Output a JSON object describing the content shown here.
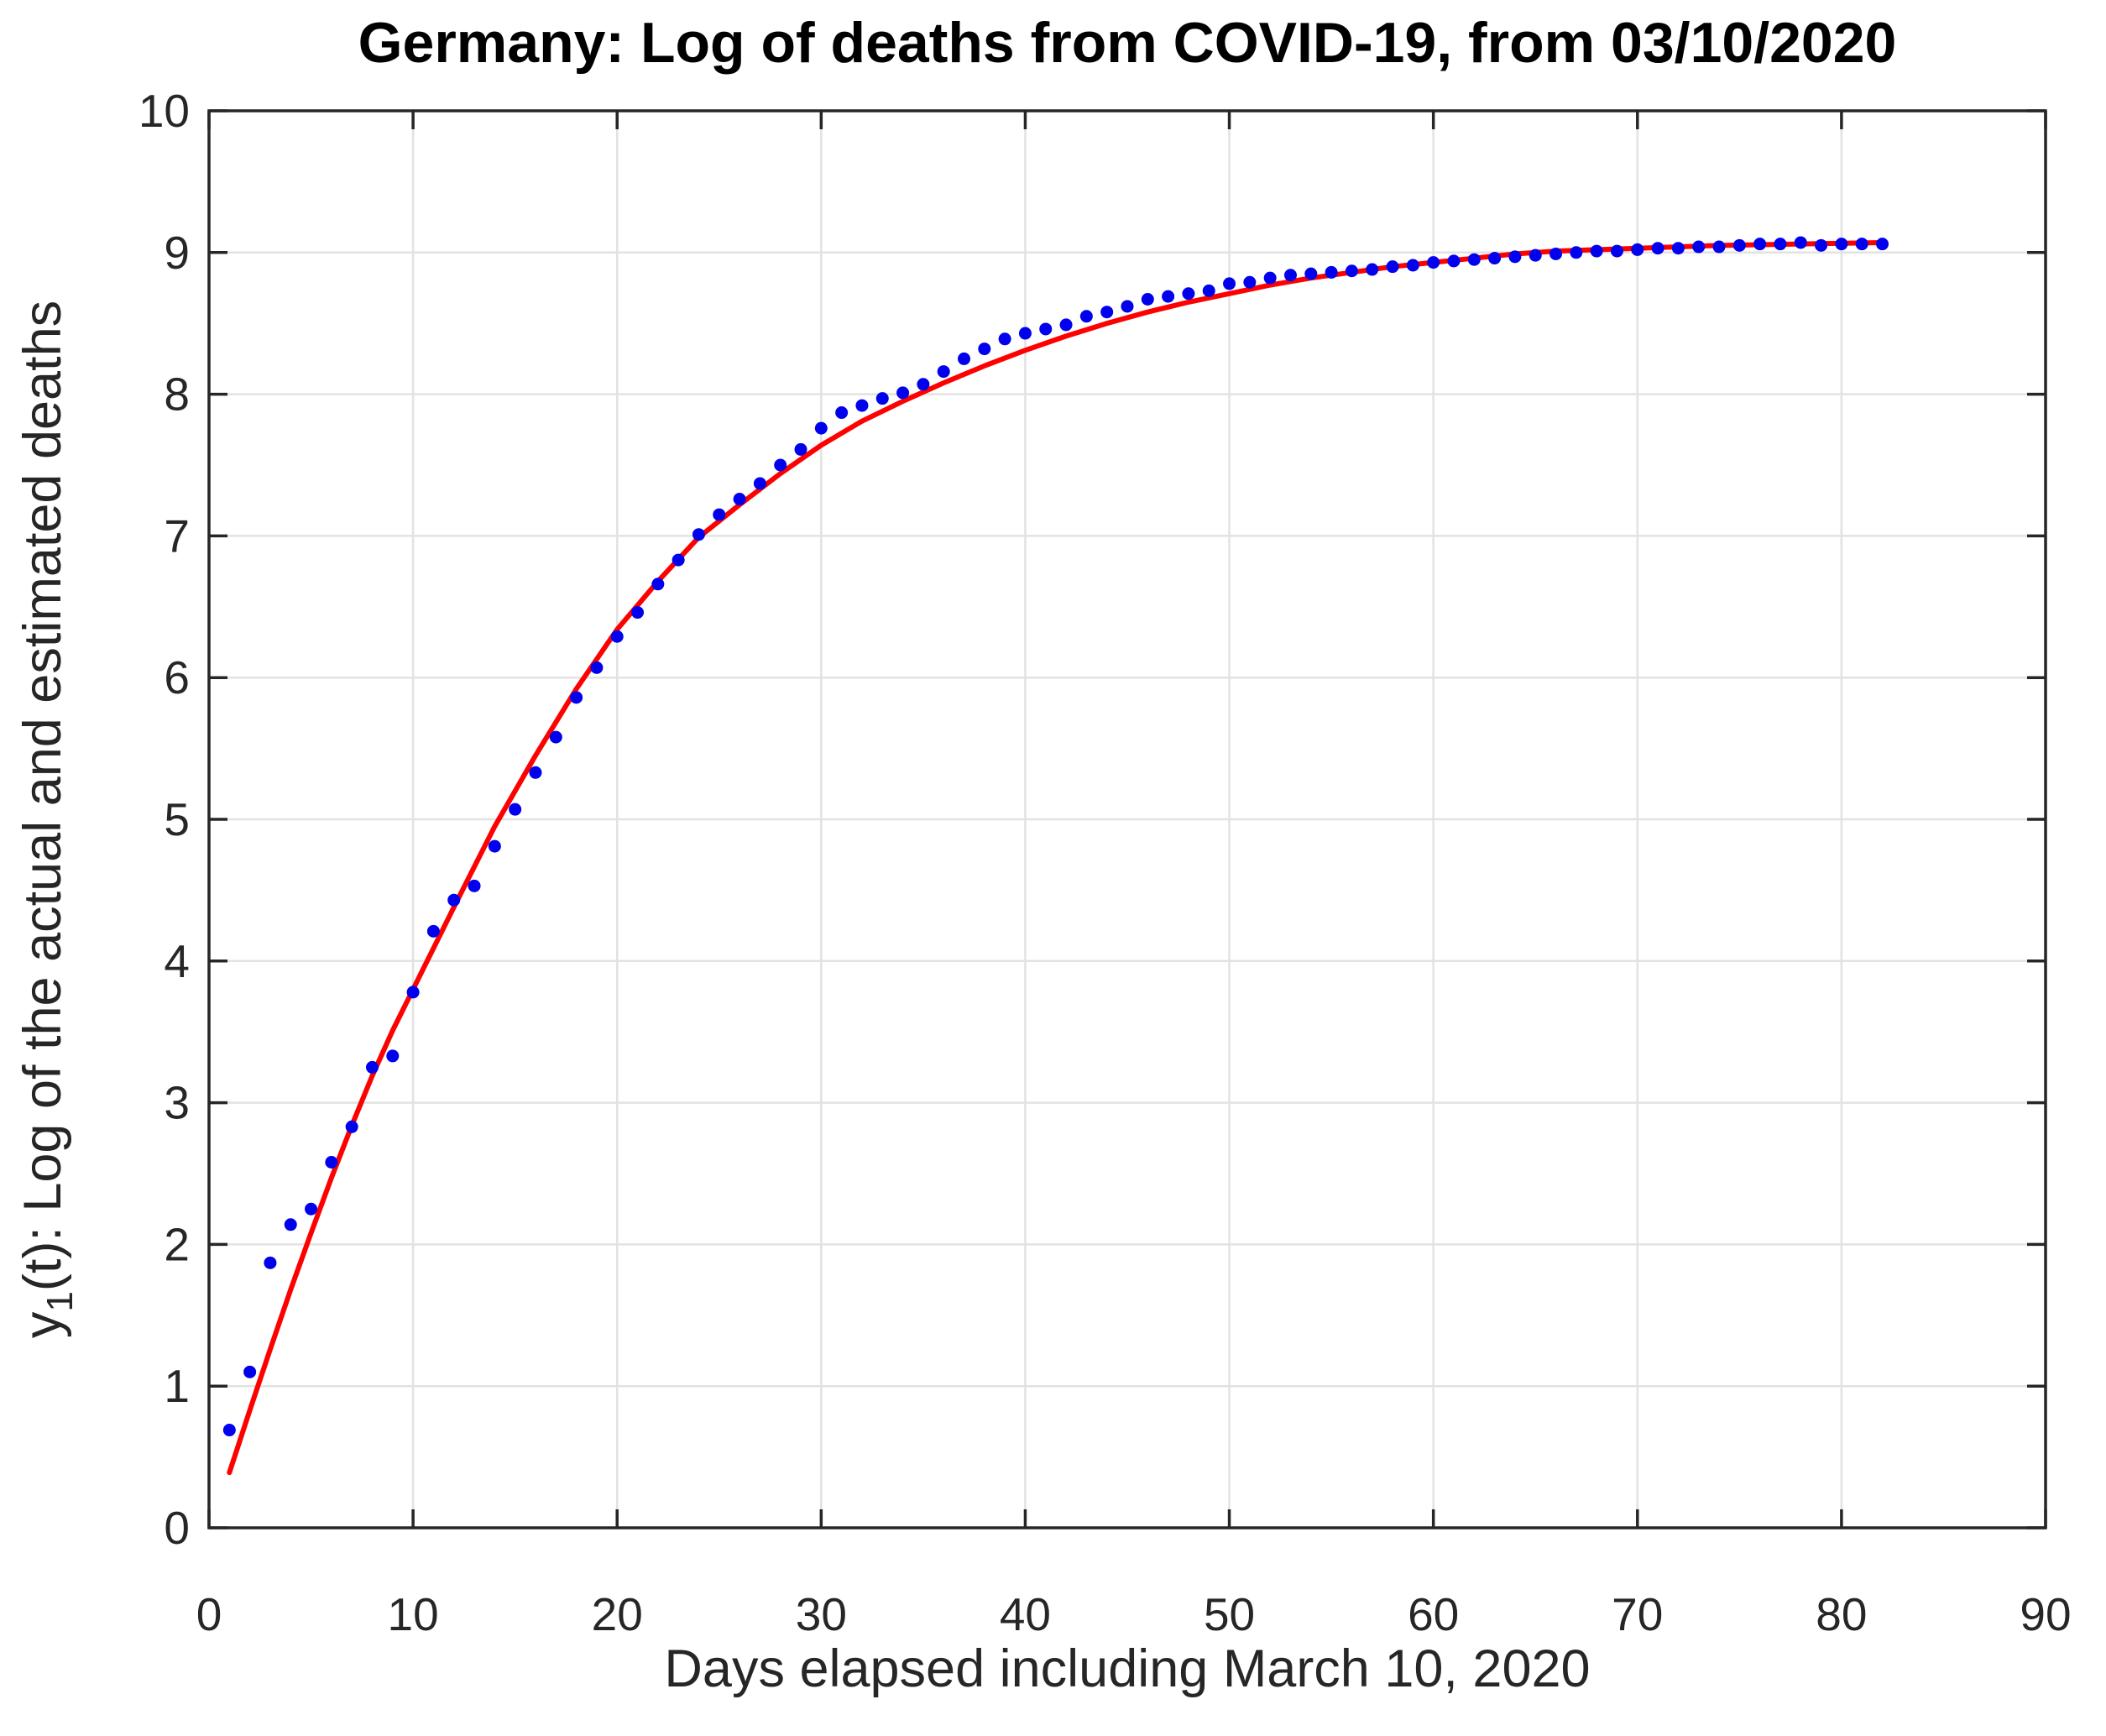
{
  "figure": {
    "title": "Germany: Log of deaths from COVID-19, from 03/10/2020",
    "xlabel": "Days elapsed including March 10, 2020",
    "ylabel_prefix": "y",
    "ylabel_sub": "1",
    "ylabel_rest": "(t): Log of the actual and estimated deaths"
  },
  "chart_data": {
    "type": "scatter",
    "title": "Germany: Log of deaths from COVID-19, from 03/10/2020",
    "xlabel": "Days elapsed including March 10, 2020",
    "ylabel": "y_1(t): Log of the actual and estimated deaths",
    "xlim": [
      0,
      90
    ],
    "ylim": [
      0,
      10
    ],
    "x_ticks": [
      0,
      10,
      20,
      30,
      40,
      50,
      60,
      70,
      80,
      90
    ],
    "y_ticks": [
      0,
      1,
      2,
      3,
      4,
      5,
      6,
      7,
      8,
      9,
      10
    ],
    "grid": true,
    "legend": false,
    "colors": {
      "points": "#0000EE",
      "fit_line": "#FF0000",
      "axis": "#262626",
      "grid": "#E2E2E2",
      "title": "#000000"
    },
    "series": [
      {
        "name": "actual log of deaths (data points)",
        "kind": "scatter",
        "color": "#0000EE",
        "x": [
          1,
          2,
          3,
          4,
          5,
          6,
          7,
          8,
          9,
          10,
          11,
          12,
          13,
          14,
          15,
          16,
          17,
          18,
          19,
          20,
          21,
          22,
          23,
          24,
          25,
          26,
          27,
          28,
          29,
          30,
          31,
          32,
          33,
          34,
          35,
          36,
          37,
          38,
          39,
          40,
          41,
          42,
          43,
          44,
          45,
          46,
          47,
          48,
          49,
          50,
          51,
          52,
          53,
          54,
          55,
          56,
          57,
          58,
          59,
          60,
          61,
          62,
          63,
          64,
          65,
          66,
          67,
          68,
          69,
          70,
          71,
          72,
          73,
          74,
          75,
          76,
          77,
          78,
          79,
          80,
          81,
          82
        ],
        "y": [
          0.69,
          1.1,
          1.87,
          2.14,
          2.25,
          2.58,
          2.83,
          3.25,
          3.33,
          3.78,
          4.21,
          4.43,
          4.53,
          4.81,
          5.07,
          5.33,
          5.58,
          5.86,
          6.07,
          6.29,
          6.46,
          6.66,
          6.83,
          7.01,
          7.15,
          7.26,
          7.37,
          7.5,
          7.61,
          7.76,
          7.87,
          7.92,
          7.97,
          8.01,
          8.07,
          8.16,
          8.25,
          8.32,
          8.39,
          8.43,
          8.46,
          8.49,
          8.55,
          8.58,
          8.62,
          8.67,
          8.69,
          8.71,
          8.73,
          8.78,
          8.79,
          8.82,
          8.84,
          8.85,
          8.86,
          8.87,
          8.88,
          8.9,
          8.91,
          8.93,
          8.94,
          8.95,
          8.96,
          8.97,
          8.98,
          8.99,
          9.0,
          9.01,
          9.01,
          9.02,
          9.03,
          9.03,
          9.04,
          9.04,
          9.05,
          9.06,
          9.06,
          9.07,
          9.05,
          9.06,
          9.06,
          9.06
        ]
      },
      {
        "name": "estimated (fitted) log of deaths",
        "kind": "line",
        "color": "#FF0000",
        "points": [
          [
            1,
            0.39
          ],
          [
            2,
            0.83
          ],
          [
            3,
            1.26
          ],
          [
            4,
            1.68
          ],
          [
            5,
            2.08
          ],
          [
            6,
            2.47
          ],
          [
            7,
            2.84
          ],
          [
            8,
            3.19
          ],
          [
            9,
            3.51
          ],
          [
            10,
            3.8
          ],
          [
            12,
            4.38
          ],
          [
            14,
            4.95
          ],
          [
            16,
            5.45
          ],
          [
            18,
            5.92
          ],
          [
            20,
            6.34
          ],
          [
            22,
            6.68
          ],
          [
            24,
            6.99
          ],
          [
            26,
            7.22
          ],
          [
            28,
            7.44
          ],
          [
            30,
            7.64
          ],
          [
            32,
            7.81
          ],
          [
            34,
            7.95
          ],
          [
            36,
            8.08
          ],
          [
            38,
            8.2
          ],
          [
            40,
            8.31
          ],
          [
            42,
            8.41
          ],
          [
            44,
            8.5
          ],
          [
            46,
            8.58
          ],
          [
            48,
            8.65
          ],
          [
            50,
            8.71
          ],
          [
            52,
            8.77
          ],
          [
            54,
            8.82
          ],
          [
            56,
            8.86
          ],
          [
            58,
            8.9
          ],
          [
            60,
            8.93
          ],
          [
            62,
            8.96
          ],
          [
            64,
            8.99
          ],
          [
            66,
            9.01
          ],
          [
            68,
            9.02
          ],
          [
            70,
            9.03
          ],
          [
            74,
            9.05
          ],
          [
            78,
            9.06
          ],
          [
            82,
            9.07
          ]
        ]
      }
    ]
  }
}
